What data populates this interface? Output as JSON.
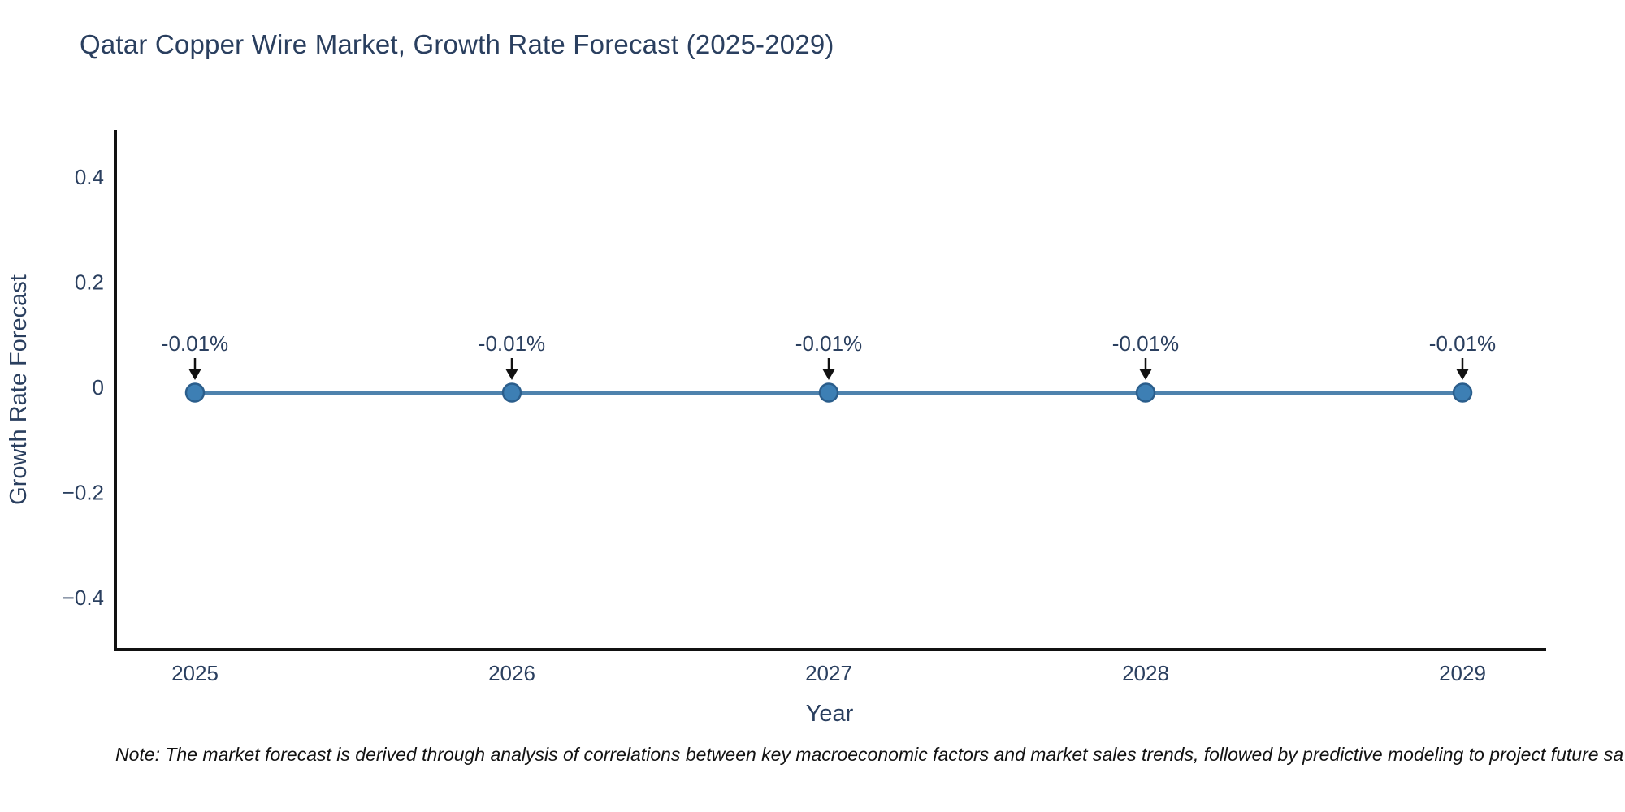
{
  "title": "Qatar Copper Wire Market, Growth Rate Forecast (2025-2029)",
  "note": "Note: The market forecast is derived through analysis of correlations between key macroeconomic factors and market sales trends, followed by predictive modeling to project future sa",
  "chart_data": {
    "type": "line",
    "x": [
      2025,
      2026,
      2027,
      2028,
      2029
    ],
    "series": [
      {
        "name": "Growth Rate Forecast",
        "values": [
          -0.01,
          -0.01,
          -0.01,
          -0.01,
          -0.01
        ]
      }
    ],
    "point_labels": [
      "-0.01%",
      "-0.01%",
      "-0.01%",
      "-0.01%",
      "-0.01%"
    ],
    "xlabel": "Year",
    "ylabel": "Growth Rate Forecast",
    "ylim": [
      -0.5,
      0.5
    ],
    "yticks": [
      0.4,
      0.2,
      0,
      -0.2,
      -0.4
    ],
    "xticks": [
      "2025",
      "2026",
      "2027",
      "2028",
      "2029"
    ],
    "grid": false,
    "legend": "none",
    "annotation_arrows": "down",
    "colors": {
      "line": "#4e82ad",
      "marker": "#3d7fb4",
      "marker_edge": "#2b5e8c",
      "arrow": "#111111",
      "text": "#2a3f5f",
      "axis": "#111111",
      "note_text": "#121212"
    }
  }
}
